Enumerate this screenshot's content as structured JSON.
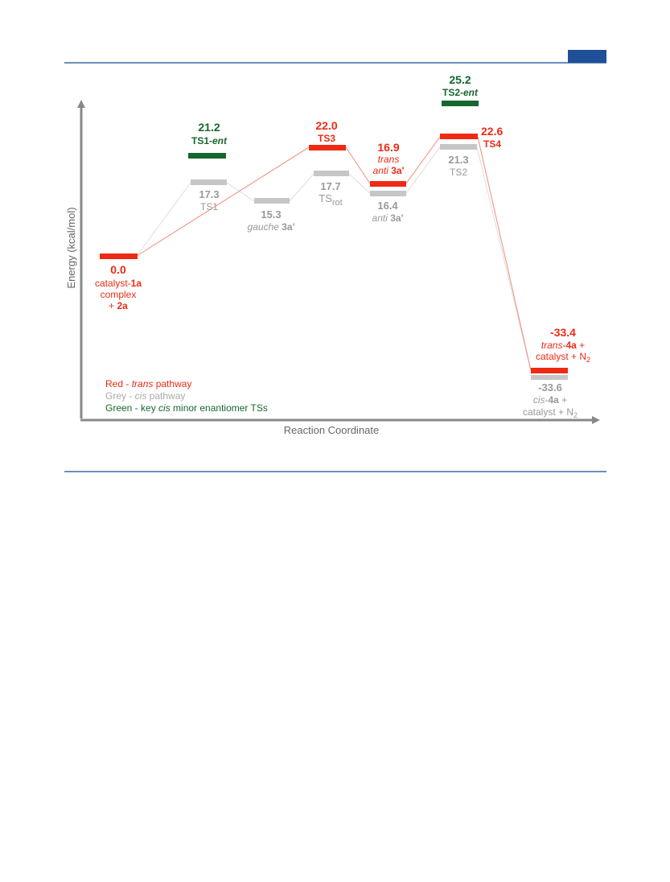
{
  "axes": {
    "y_label": "Energy (kcal/mol)",
    "x_label": "Reaction Coordinate"
  },
  "legend": {
    "red": {
      "prefix": "Red - ",
      "italic": "trans",
      "suffix": " pathway"
    },
    "grey": {
      "prefix": "Grey - ",
      "italic": "cis",
      "suffix": " pathway"
    },
    "green": {
      "prefix": "Green - key ",
      "italic": "cis",
      "suffix": " minor enantiomer TSs"
    }
  },
  "colors": {
    "red": "#ee2a14",
    "grey": "#c6c6c6",
    "grey_text": "#999999",
    "green": "#16672e",
    "axis": "#888888",
    "rule": "#3a6aa6"
  },
  "levels": {
    "start": {
      "energy": "0.0",
      "l1_a": "catalyst-",
      "l1_b": "1a",
      "l2": "complex",
      "l3_a": "+ ",
      "l3_b": "2a"
    },
    "ts1_ent": {
      "energy": "21.2",
      "l_a": "TS1-",
      "l_b": "ent"
    },
    "ts1": {
      "energy": "17.3",
      "label": "TS1"
    },
    "gauche": {
      "energy": "15.3",
      "l_a": "gauche ",
      "l_b": "3a'"
    },
    "ts3": {
      "energy": "22.0",
      "label": "TS3"
    },
    "tsrot": {
      "energy": "17.7",
      "l_a": "TS",
      "l_b": "rot"
    },
    "trans_anti": {
      "energy": "16.9",
      "l1": "trans",
      "l2_a": "anti ",
      "l2_b": "3a'"
    },
    "anti": {
      "energy": "16.4",
      "l_a": "anti ",
      "l_b": "3a'"
    },
    "ts2_ent": {
      "energy": "25.2",
      "l_a": "TS2-",
      "l_b": "ent"
    },
    "ts4": {
      "energy": "22.6",
      "label": "TS4"
    },
    "ts2": {
      "energy": "21.3",
      "label": "TS2"
    },
    "trans_product": {
      "energy": "-33.4",
      "l1_a": "trans",
      "l1_b": "-",
      "l1_c": "4a",
      "l1_d": " +",
      "l2_a": "catalyst + N",
      "l2_b": "2"
    },
    "cis_product": {
      "energy": "-33.6",
      "l1_a": "cis",
      "l1_b": "-",
      "l1_c": "4a",
      "l1_d": " +",
      "l2_a": "catalyst + N",
      "l2_b": "2"
    }
  }
}
